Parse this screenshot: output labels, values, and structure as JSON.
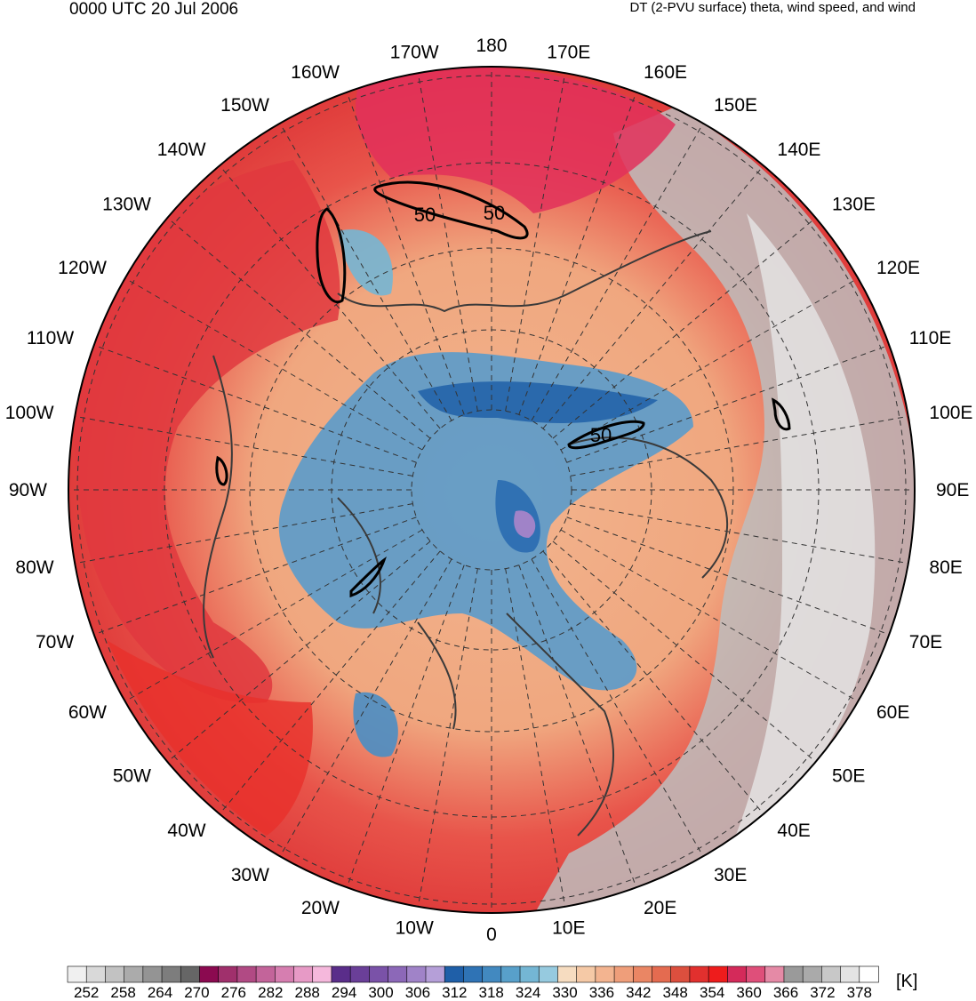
{
  "header": {
    "valid_time": "0000 UTC 20 Jul 2006",
    "field_title": "DT (2-PVU surface) theta, wind speed, and wind"
  },
  "map": {
    "projection": "north-polar-stereographic",
    "center_lat": 90,
    "lat_circle_interval_deg": 10,
    "lon_line_interval_deg": 10,
    "longitude_labels": [
      {
        "lon": 180,
        "text": "180"
      },
      {
        "lon": 170,
        "text": "170E"
      },
      {
        "lon": 160,
        "text": "160E"
      },
      {
        "lon": 150,
        "text": "150E"
      },
      {
        "lon": 140,
        "text": "140E"
      },
      {
        "lon": 130,
        "text": "130E"
      },
      {
        "lon": 120,
        "text": "120E"
      },
      {
        "lon": 110,
        "text": "110E"
      },
      {
        "lon": 100,
        "text": "100E"
      },
      {
        "lon": 90,
        "text": "90E"
      },
      {
        "lon": 80,
        "text": "80E"
      },
      {
        "lon": 70,
        "text": "70E"
      },
      {
        "lon": 60,
        "text": "60E"
      },
      {
        "lon": 50,
        "text": "50E"
      },
      {
        "lon": 40,
        "text": "40E"
      },
      {
        "lon": 30,
        "text": "30E"
      },
      {
        "lon": 20,
        "text": "20E"
      },
      {
        "lon": 10,
        "text": "10E"
      },
      {
        "lon": 0,
        "text": "0"
      },
      {
        "lon": -10,
        "text": "10W"
      },
      {
        "lon": -20,
        "text": "20W"
      },
      {
        "lon": -30,
        "text": "30W"
      },
      {
        "lon": -40,
        "text": "40W"
      },
      {
        "lon": -50,
        "text": "50W"
      },
      {
        "lon": -60,
        "text": "60W"
      },
      {
        "lon": -70,
        "text": "70W"
      },
      {
        "lon": -80,
        "text": "80W"
      },
      {
        "lon": -90,
        "text": "90W"
      },
      {
        "lon": -100,
        "text": "100W"
      },
      {
        "lon": -110,
        "text": "110W"
      },
      {
        "lon": -120,
        "text": "120W"
      },
      {
        "lon": -130,
        "text": "130W"
      },
      {
        "lon": -140,
        "text": "140W"
      },
      {
        "lon": -150,
        "text": "150W"
      },
      {
        "lon": -160,
        "text": "160W"
      },
      {
        "lon": -170,
        "text": "170W"
      }
    ],
    "wind_speed_contours": [
      {
        "value": 50,
        "label": "50",
        "region": "north of eastern Siberia"
      },
      {
        "value": 50,
        "label": "50",
        "region": "north of eastern Siberia"
      },
      {
        "value": 50,
        "label": "50",
        "region": "north-central Siberia"
      }
    ],
    "colors": {
      "coastline": "#3a3a3a",
      "grid": "#333333",
      "contour": "#000000",
      "outline": "#000000"
    }
  },
  "colorbar": {
    "unit": "[K]",
    "levels": [
      252,
      255,
      258,
      261,
      264,
      267,
      270,
      273,
      276,
      279,
      282,
      285,
      288,
      291,
      294,
      297,
      300,
      303,
      306,
      309,
      312,
      315,
      318,
      321,
      324,
      327,
      330,
      333,
      336,
      339,
      342,
      345,
      348,
      351,
      354,
      357,
      360,
      363,
      366,
      369,
      372,
      375,
      378
    ],
    "tick_labels": [
      "252",
      "258",
      "264",
      "270",
      "276",
      "282",
      "288",
      "294",
      "300",
      "306",
      "312",
      "318",
      "324",
      "330",
      "336",
      "342",
      "348",
      "354",
      "360",
      "366",
      "372",
      "378"
    ],
    "colors": [
      "#f0f0f0",
      "#d9d9d9",
      "#c2c2c2",
      "#ababab",
      "#949494",
      "#7d7d7d",
      "#666666",
      "#8b0a50",
      "#a0306c",
      "#b14a84",
      "#c3649a",
      "#d67eb0",
      "#e79ac6",
      "#f5b8dc",
      "#5a2d8a",
      "#6a3f98",
      "#7a52a8",
      "#8c68b8",
      "#a083c8",
      "#b59fd8",
      "#1f5fa8",
      "#2f73b5",
      "#4289c0",
      "#58a0ca",
      "#74b6d4",
      "#96cadf",
      "#f6dcc0",
      "#f5c9a6",
      "#f3b490",
      "#ef9e7a",
      "#ea8664",
      "#e46b50",
      "#dc4f3e",
      "#e2302e",
      "#ee1c1c",
      "#d42a5a",
      "#df4f7a",
      "#e58aa6",
      "#9a9a9a",
      "#aaaaaa",
      "#c8c8c8",
      "#e4e4e4",
      "#ffffff"
    ]
  }
}
